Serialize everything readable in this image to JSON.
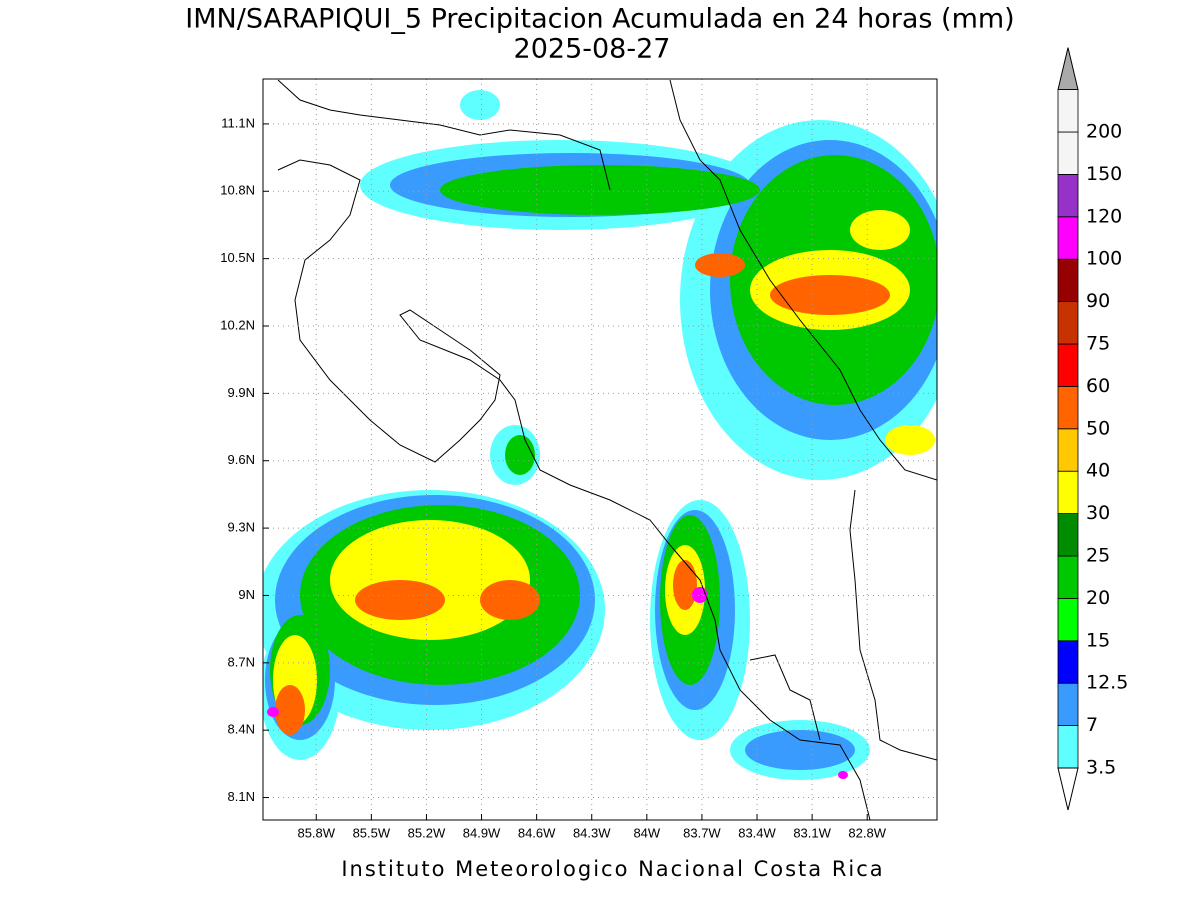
{
  "title": "IMN/SARAPIQUI_5 Precipitacion Acumulada en 24 horas (mm)",
  "subtitle": "2025-08-27",
  "footer": "Instituto Meteorologico Nacional Costa Rica",
  "map": {
    "xlim": [
      -86.09,
      -82.42
    ],
    "ylim": [
      8.0,
      11.3
    ],
    "grid": true,
    "xticks": [
      {
        "value": -85.8,
        "label": "85.8W"
      },
      {
        "value": -85.5,
        "label": "85.5W"
      },
      {
        "value": -85.2,
        "label": "85.2W"
      },
      {
        "value": -84.9,
        "label": "84.9W"
      },
      {
        "value": -84.6,
        "label": "84.6W"
      },
      {
        "value": -84.3,
        "label": "84.3W"
      },
      {
        "value": -84.0,
        "label": "84W"
      },
      {
        "value": -83.7,
        "label": "83.7W"
      },
      {
        "value": -83.4,
        "label": "83.4W"
      },
      {
        "value": -83.1,
        "label": "83.1W"
      },
      {
        "value": -82.8,
        "label": "82.8W"
      }
    ],
    "yticks": [
      {
        "value": 8.1,
        "label": "8.1N"
      },
      {
        "value": 8.4,
        "label": "8.4N"
      },
      {
        "value": 8.7,
        "label": "8.7N"
      },
      {
        "value": 9.0,
        "label": "9N"
      },
      {
        "value": 9.3,
        "label": "9.3N"
      },
      {
        "value": 9.6,
        "label": "9.6N"
      },
      {
        "value": 9.9,
        "label": "9.9N"
      },
      {
        "value": 10.2,
        "label": "10.2N"
      },
      {
        "value": 10.5,
        "label": "10.5N"
      },
      {
        "value": 10.8,
        "label": "10.8N"
      },
      {
        "value": 11.1,
        "label": "11.1N"
      }
    ]
  },
  "colorbar": {
    "levels": [
      3.5,
      7,
      12.5,
      15,
      20,
      25,
      30,
      40,
      50,
      60,
      75,
      90,
      100,
      120,
      150,
      200
    ],
    "colors": [
      "#5fffff",
      "#3a9bff",
      "#0000ff",
      "#00ff00",
      "#00c800",
      "#008c00",
      "#ffff00",
      "#ffc800",
      "#ff6400",
      "#ff0000",
      "#c83200",
      "#960000",
      "#ff00ff",
      "#9632c8",
      "#f5f5f5"
    ],
    "under_color": "#ffffff",
    "over_color": "#aaaaaa"
  }
}
